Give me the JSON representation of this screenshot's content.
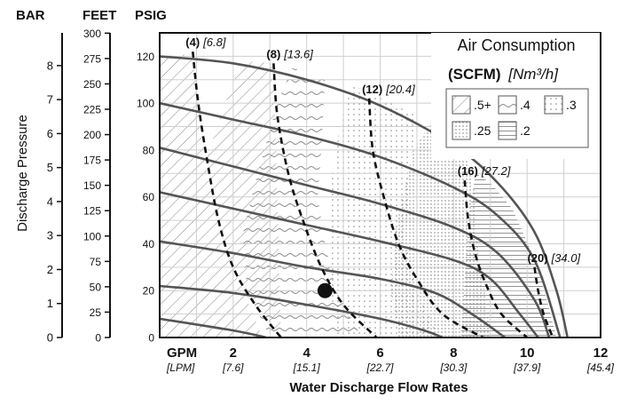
{
  "chart_data": {
    "type": "line",
    "title": "Air Consumption",
    "subtitle_bold": "(SCFM)",
    "subtitle_italic": "[Nm³/h]",
    "xlabel": "Water Discharge Flow Rates",
    "ylabel": "Discharge Pressure",
    "x_unit_primary": "GPM",
    "x_unit_secondary": "[LPM]",
    "xlim": [
      0,
      12
    ],
    "ylim": [
      0,
      130
    ],
    "x_ticks": [
      {
        "value": 2,
        "label": "2",
        "lpm": "[7.6]"
      },
      {
        "value": 4,
        "label": "4",
        "lpm": "[15.1]"
      },
      {
        "value": 6,
        "label": "6",
        "lpm": "[22.7]"
      },
      {
        "value": 8,
        "label": "8",
        "lpm": "[30.3]"
      },
      {
        "value": 10,
        "label": "10",
        "lpm": "[37.9]"
      },
      {
        "value": 12,
        "label": "12",
        "lpm": "[45.4]"
      }
    ],
    "psig_axis": {
      "label": "PSIG",
      "ticks": [
        {
          "value": 0,
          "label": "0"
        },
        {
          "value": 20,
          "label": "20"
        },
        {
          "value": 40,
          "label": "40"
        },
        {
          "value": 60,
          "label": "60"
        },
        {
          "value": 80,
          "label": "80"
        },
        {
          "value": 100,
          "label": "100"
        },
        {
          "value": 120,
          "label": "120"
        }
      ]
    },
    "feet_axis": {
      "label": "FEET",
      "ticks": [
        {
          "value": 0,
          "label": "0"
        },
        {
          "value": 25,
          "label": "25"
        },
        {
          "value": 50,
          "label": "50"
        },
        {
          "value": 75,
          "label": "75"
        },
        {
          "value": 100,
          "label": "100"
        },
        {
          "value": 125,
          "label": "125"
        },
        {
          "value": 150,
          "label": "150"
        },
        {
          "value": 175,
          "label": "175"
        },
        {
          "value": 200,
          "label": "200"
        },
        {
          "value": 225,
          "label": "225"
        },
        {
          "value": 250,
          "label": "250"
        },
        {
          "value": 275,
          "label": "275"
        },
        {
          "value": 300,
          "label": "300"
        }
      ]
    },
    "bar_axis": {
      "label": "BAR",
      "ticks": [
        {
          "value": 0,
          "label": "0"
        },
        {
          "value": 1,
          "label": "1"
        },
        {
          "value": 2,
          "label": "2"
        },
        {
          "value": 3,
          "label": "3"
        },
        {
          "value": 4,
          "label": "4"
        },
        {
          "value": 5,
          "label": "5"
        },
        {
          "value": 6,
          "label": "6"
        },
        {
          "value": 7,
          "label": "7"
        },
        {
          "value": 8,
          "label": "8"
        }
      ]
    },
    "performance_curves": [
      {
        "inlet_psig": 120,
        "points": [
          [
            0,
            120
          ],
          [
            2,
            117
          ],
          [
            4,
            110
          ],
          [
            6,
            99
          ],
          [
            8,
            82
          ],
          [
            9.2,
            66
          ],
          [
            10.2,
            45
          ],
          [
            10.8,
            20
          ],
          [
            11.1,
            0
          ]
        ]
      },
      {
        "inlet_psig": 100,
        "points": [
          [
            0,
            100
          ],
          [
            2,
            93
          ],
          [
            4,
            86
          ],
          [
            6,
            77
          ],
          [
            8,
            64
          ],
          [
            9.2,
            52
          ],
          [
            10.2,
            33
          ],
          [
            10.9,
            0
          ]
        ]
      },
      {
        "inlet_psig": 80,
        "points": [
          [
            0,
            81
          ],
          [
            2,
            73
          ],
          [
            4,
            65
          ],
          [
            6,
            57
          ],
          [
            8,
            47
          ],
          [
            9.2,
            36
          ],
          [
            10.2,
            16
          ],
          [
            10.6,
            0
          ]
        ]
      },
      {
        "inlet_psig": 60,
        "points": [
          [
            0,
            62
          ],
          [
            2,
            55
          ],
          [
            4,
            48
          ],
          [
            6,
            41
          ],
          [
            8,
            33
          ],
          [
            9,
            25
          ],
          [
            9.8,
            10
          ],
          [
            10.3,
            0
          ]
        ]
      },
      {
        "inlet_psig": 40,
        "points": [
          [
            0,
            41
          ],
          [
            2,
            36
          ],
          [
            4,
            30
          ],
          [
            6,
            25
          ],
          [
            7.5,
            19
          ],
          [
            8.5,
            10
          ],
          [
            9.4,
            0
          ]
        ]
      },
      {
        "inlet_psig": 20,
        "points": [
          [
            0,
            22
          ],
          [
            2,
            19
          ],
          [
            4,
            14
          ],
          [
            6,
            8
          ],
          [
            7.2,
            3
          ],
          [
            7.7,
            0
          ]
        ]
      },
      {
        "inlet_psig": 0,
        "points": [
          [
            0,
            8
          ],
          [
            2,
            3
          ],
          [
            2.9,
            0
          ]
        ]
      }
    ],
    "air_consumption_curves": [
      {
        "label_bold": "(4)",
        "label_italic": "[6.8]",
        "points": [
          [
            0.9,
            122
          ],
          [
            1.05,
            100
          ],
          [
            1.3,
            75
          ],
          [
            1.6,
            50
          ],
          [
            2.0,
            30
          ],
          [
            2.6,
            14
          ],
          [
            3.3,
            0
          ]
        ]
      },
      {
        "label_bold": "(8)",
        "label_italic": "[13.6]",
        "points": [
          [
            3.1,
            117
          ],
          [
            3.2,
            95
          ],
          [
            3.5,
            70
          ],
          [
            3.9,
            50
          ],
          [
            4.4,
            30
          ],
          [
            5.0,
            14
          ],
          [
            5.9,
            0
          ]
        ]
      },
      {
        "label_bold": "(12)",
        "label_italic": "[20.4]",
        "points": [
          [
            5.7,
            102
          ],
          [
            5.8,
            80
          ],
          [
            6.1,
            60
          ],
          [
            6.5,
            40
          ],
          [
            7.0,
            25
          ],
          [
            7.7,
            10
          ],
          [
            8.8,
            0
          ]
        ]
      },
      {
        "label_bold": "(16)",
        "label_italic": "[27.2]",
        "points": [
          [
            8.3,
            67
          ],
          [
            8.4,
            50
          ],
          [
            8.6,
            35
          ],
          [
            8.9,
            22
          ],
          [
            9.3,
            10
          ],
          [
            10.0,
            0
          ]
        ]
      },
      {
        "label_bold": "(20)",
        "label_italic": "[34.0]",
        "points": [
          [
            10.2,
            30
          ],
          [
            10.3,
            20
          ],
          [
            10.45,
            10
          ],
          [
            10.7,
            0
          ]
        ]
      }
    ],
    "operating_point": {
      "x": 4.5,
      "y": 20
    },
    "legend": {
      "placement": "top-right",
      "items": [
        {
          "label": ".5+",
          "pattern": "diagonal"
        },
        {
          "label": ".4",
          "pattern": "wavy"
        },
        {
          "label": ".3",
          "pattern": "dotted"
        },
        {
          "label": ".25",
          "pattern": "dense-dots"
        },
        {
          "label": ".2",
          "pattern": "horizontal"
        }
      ]
    },
    "colors": {
      "curve": "#555555",
      "grid": "#cfcfcf",
      "dash": "#111111",
      "point": "#111111"
    }
  }
}
